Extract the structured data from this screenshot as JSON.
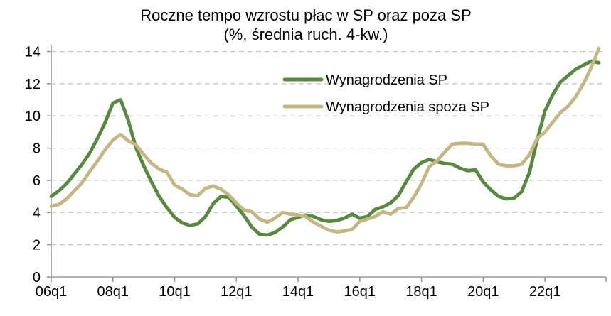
{
  "figure": {
    "title": "Roczne tempo wzrostu płac w SP oraz poza SP",
    "subtitle": "(%, średnia ruch. 4-kw.)"
  },
  "legend": {
    "items": [
      {
        "label": "Wynagrodzenia SP",
        "color": "#588940"
      },
      {
        "label": "Wynagrodzenia spoza SP",
        "color": "#c5b684"
      }
    ]
  },
  "colors": {
    "series_sp": "#588940",
    "series_spoza_sp": "#c5b684",
    "gridline": "#c6c6c6",
    "axis": "#9a9a9a",
    "text": "#000000",
    "background": "#ffffff"
  },
  "chart_data": {
    "type": "line",
    "title": "Roczne tempo wzrostu płac w SP oraz poza SP",
    "subtitle": "(%, średnia ruch. 4-kw.)",
    "xlabel": "",
    "ylabel": "",
    "ylim": [
      0,
      14
    ],
    "y_ticks": [
      0,
      2,
      4,
      6,
      8,
      10,
      12,
      14
    ],
    "grid": "horizontal-dashed",
    "legend_position": "inside-top-center",
    "x_unit": "quarter",
    "x_axis_tick_labels": [
      "06q1",
      "08q1",
      "10q1",
      "12q1",
      "14q1",
      "16q1",
      "18q1",
      "20q1",
      "22q1"
    ],
    "x_axis_tick_every": 8,
    "x": [
      "06q1",
      "06q2",
      "06q3",
      "06q4",
      "07q1",
      "07q2",
      "07q3",
      "07q4",
      "08q1",
      "08q2",
      "08q3",
      "08q4",
      "09q1",
      "09q2",
      "09q3",
      "09q4",
      "10q1",
      "10q2",
      "10q3",
      "10q4",
      "11q1",
      "11q2",
      "11q3",
      "11q4",
      "12q1",
      "12q2",
      "12q3",
      "12q4",
      "13q1",
      "13q2",
      "13q3",
      "13q4",
      "14q1",
      "14q2",
      "14q3",
      "14q4",
      "15q1",
      "15q2",
      "15q3",
      "15q4",
      "16q1",
      "16q2",
      "16q3",
      "16q4",
      "17q1",
      "17q2",
      "17q3",
      "17q4",
      "18q1",
      "18q2",
      "18q3",
      "18q4",
      "19q1",
      "19q2",
      "19q3",
      "19q4",
      "20q1",
      "20q2",
      "20q3",
      "20q4",
      "21q1",
      "21q2",
      "21q3",
      "21q4",
      "22q1",
      "22q2",
      "22q3",
      "22q4",
      "23q1",
      "23q2",
      "23q3",
      "23q4"
    ],
    "series": [
      {
        "name": "Wynagrodzenia SP",
        "color": "#588940",
        "values": [
          5.0,
          5.35,
          5.8,
          6.4,
          7.0,
          7.7,
          8.6,
          9.6,
          10.8,
          11.0,
          9.7,
          8.0,
          6.9,
          5.9,
          5.0,
          4.3,
          3.7,
          3.35,
          3.2,
          3.3,
          3.75,
          4.55,
          5.0,
          4.95,
          4.4,
          3.8,
          3.1,
          2.65,
          2.6,
          2.75,
          3.1,
          3.55,
          3.7,
          3.85,
          3.75,
          3.55,
          3.45,
          3.5,
          3.65,
          3.9,
          3.65,
          3.75,
          4.2,
          4.35,
          4.6,
          5.05,
          5.9,
          6.7,
          7.1,
          7.3,
          7.15,
          7.05,
          7.0,
          6.75,
          6.6,
          6.65,
          5.9,
          5.4,
          5.0,
          4.85,
          4.9,
          5.3,
          6.5,
          8.5,
          10.3,
          11.3,
          12.1,
          12.5,
          12.9,
          13.15,
          13.4,
          13.3
        ]
      },
      {
        "name": "Wynagrodzenia spoza SP",
        "color": "#c5b684",
        "values": [
          4.4,
          4.5,
          4.85,
          5.35,
          5.85,
          6.55,
          7.2,
          7.9,
          8.5,
          8.85,
          8.45,
          8.2,
          7.6,
          7.05,
          6.7,
          6.5,
          5.7,
          5.45,
          5.1,
          5.05,
          5.5,
          5.65,
          5.45,
          5.1,
          4.6,
          4.15,
          4.05,
          3.6,
          3.4,
          3.65,
          4.0,
          3.9,
          3.85,
          3.75,
          3.4,
          3.15,
          2.9,
          2.8,
          2.85,
          2.95,
          3.45,
          3.6,
          3.75,
          4.05,
          3.9,
          4.25,
          4.3,
          4.95,
          5.8,
          6.85,
          7.2,
          7.75,
          8.25,
          8.3,
          8.3,
          8.25,
          8.25,
          7.5,
          7.0,
          6.9,
          6.9,
          7.0,
          7.6,
          8.6,
          9.0,
          9.6,
          10.2,
          10.6,
          11.2,
          12.0,
          13.0,
          14.2
        ]
      }
    ]
  }
}
